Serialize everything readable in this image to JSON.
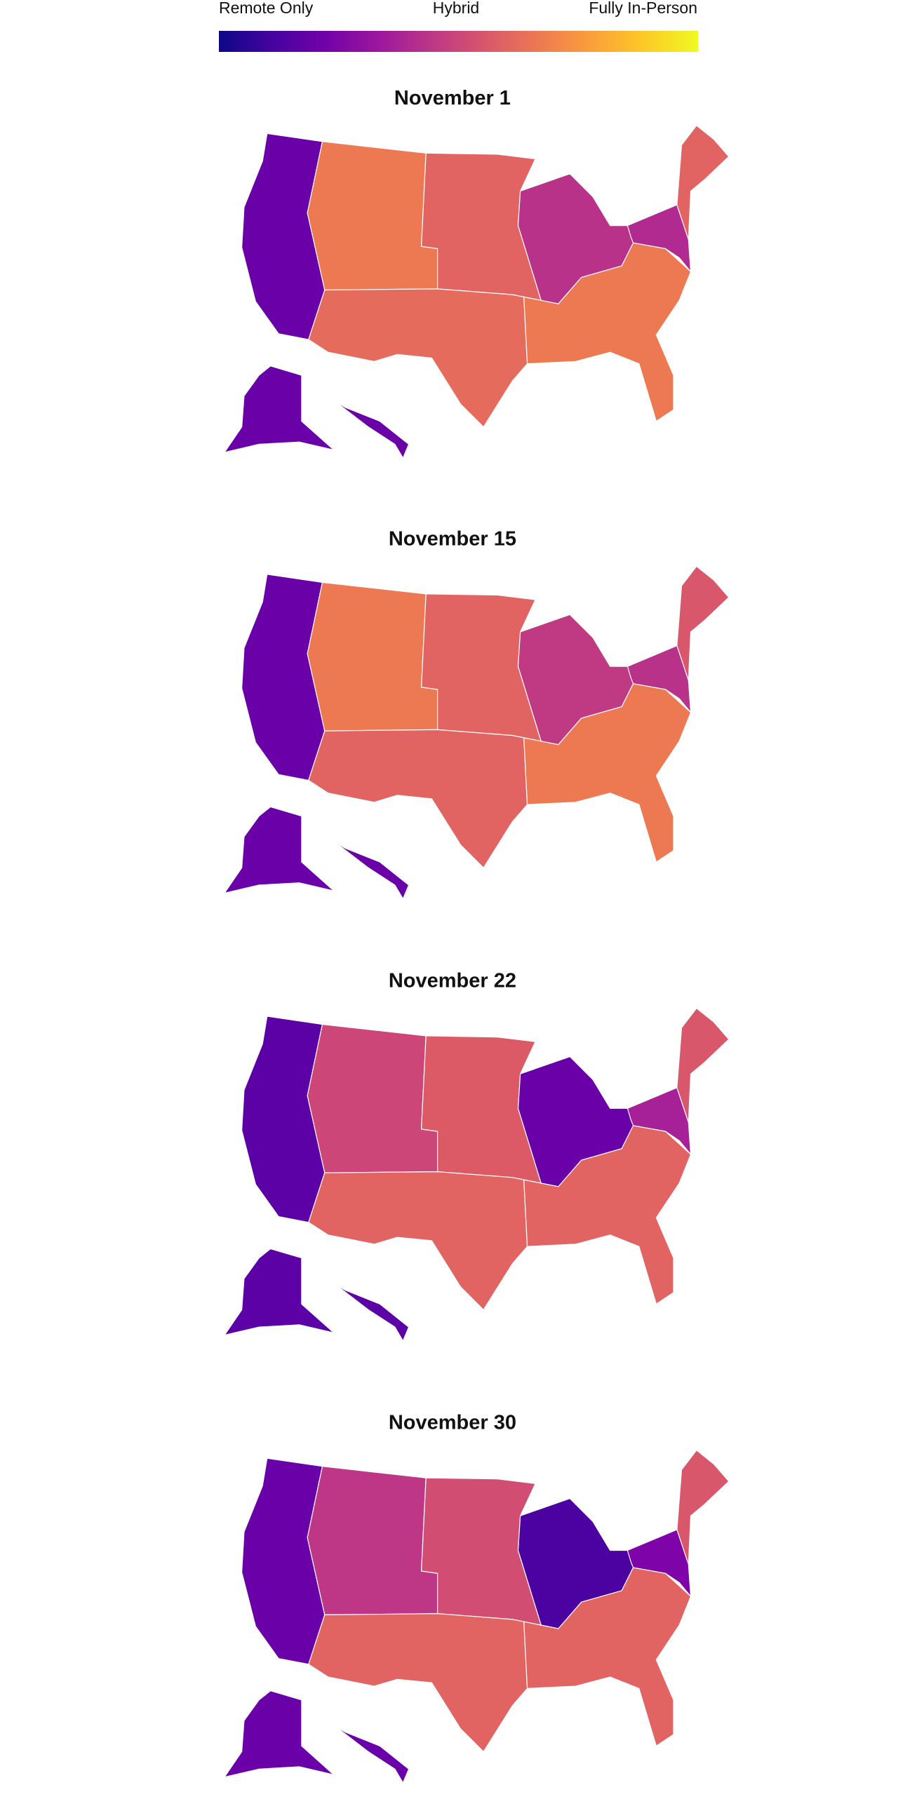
{
  "legend": {
    "labels": [
      "Remote Only",
      "Hybrid",
      "Fully In-Person"
    ],
    "colorscale": [
      "#0d0887",
      "#46039f",
      "#7201a8",
      "#9c179e",
      "#bd3786",
      "#d8576b",
      "#ed7953",
      "#fb9f3a",
      "#fdca26",
      "#f0f921"
    ]
  },
  "maps": [
    {
      "title": "November 1",
      "region_colors": [
        "#6a00a8",
        "#ed7953",
        "#e16462",
        "#b83289",
        "#b12a90",
        "#e16462",
        "#e56b5d",
        "#ed7953",
        "#6a00a8",
        "#6a00a8"
      ]
    },
    {
      "title": "November 15",
      "region_colors": [
        "#6a00a8",
        "#ed7953",
        "#e16462",
        "#c03a83",
        "#b83289",
        "#d8576b",
        "#e16462",
        "#ed7953",
        "#6a00a8",
        "#6a00a8"
      ]
    },
    {
      "title": "November 22",
      "region_colors": [
        "#5c01a6",
        "#cc4778",
        "#dc5a65",
        "#6a00a8",
        "#a62098",
        "#d8576b",
        "#e16462",
        "#e16462",
        "#5c01a6",
        "#5c01a6"
      ]
    },
    {
      "title": "November 30",
      "region_colors": [
        "#6a00a8",
        "#bd3786",
        "#d14e72",
        "#4c02a1",
        "#7e03a8",
        "#d8576b",
        "#e16462",
        "#e16462",
        "#6a00a8",
        "#6a00a8"
      ]
    }
  ]
}
